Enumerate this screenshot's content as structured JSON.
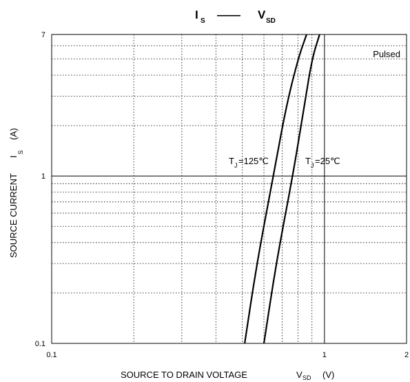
{
  "chart_data": {
    "type": "line",
    "title": {
      "y_symbol": "I",
      "y_sub": "S",
      "dash": "——",
      "x_symbol": "V",
      "x_sub": "SD"
    },
    "xlabel": {
      "text": "SOURCE TO DRAIN VOLTAGE",
      "symbol": "V",
      "sub": "SD",
      "unit": "(V)"
    },
    "ylabel": {
      "text": "SOURCE CURRENT",
      "symbol": "I",
      "sub": "S",
      "unit": "(A)"
    },
    "x_scale": "log",
    "y_scale": "log",
    "xlim": [
      0.1,
      2
    ],
    "ylim": [
      0.1,
      7
    ],
    "x_ticks": [
      {
        "value": 0.1,
        "label": "0.1"
      },
      {
        "value": 1,
        "label": "1"
      },
      {
        "value": 2,
        "label": "2"
      }
    ],
    "y_ticks": [
      {
        "value": 0.1,
        "label": "0.1"
      },
      {
        "value": 1,
        "label": "1"
      },
      {
        "value": 7,
        "label": "7"
      }
    ],
    "grid": true,
    "annotation": "Pulsed",
    "series": [
      {
        "name": "T_J=125℃",
        "label": {
          "pre": "T",
          "sub": "J",
          "post": "=125℃"
        },
        "color": "#000000",
        "points": [
          [
            0.51,
            0.1
          ],
          [
            0.565,
            0.3
          ],
          [
            0.65,
            1.0
          ],
          [
            0.72,
            2.5
          ],
          [
            0.8,
            5.0
          ],
          [
            0.86,
            7.0
          ]
        ]
      },
      {
        "name": "T_J=25℃",
        "label": {
          "pre": "T",
          "sub": "J",
          "post": "=25℃"
        },
        "color": "#000000",
        "points": [
          [
            0.6,
            0.1
          ],
          [
            0.665,
            0.3
          ],
          [
            0.765,
            1.0
          ],
          [
            0.84,
            2.5
          ],
          [
            0.9,
            5.0
          ],
          [
            0.96,
            7.0
          ]
        ]
      }
    ]
  }
}
